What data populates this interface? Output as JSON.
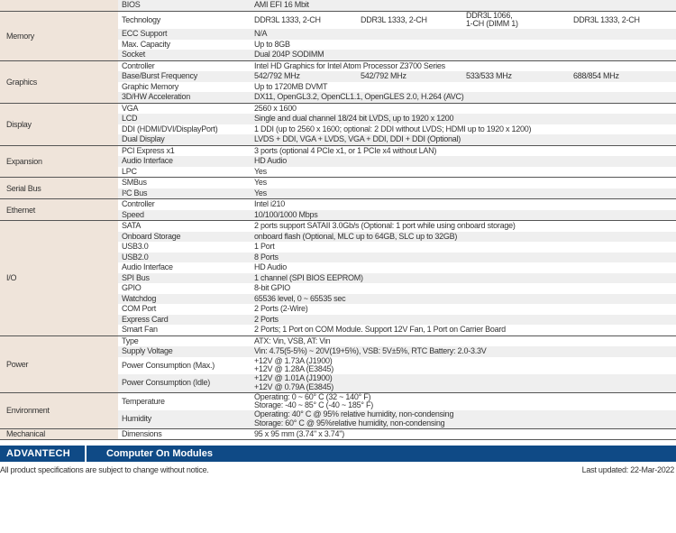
{
  "groups": [
    {
      "category": "",
      "rows": [
        {
          "label": "BIOS",
          "values": [
            "AMI EFI 16 Mbit"
          ],
          "shade": true
        }
      ]
    },
    {
      "category": "Memory",
      "rows": [
        {
          "label": "Technology",
          "values": [
            "DDR3L 1333, 2-CH",
            "DDR3L 1333, 2-CH",
            "DDR3L 1066,\n1-CH (DIMM 1)",
            "DDR3L 1333, 2-CH"
          ],
          "tall": true
        },
        {
          "label": "ECC Support",
          "values": [
            "N/A"
          ]
        },
        {
          "label": "Max. Capacity",
          "values": [
            "Up to 8GB"
          ]
        },
        {
          "label": "Socket",
          "values": [
            "Dual 204P SODIMM"
          ]
        }
      ]
    },
    {
      "category": "Graphics",
      "rows": [
        {
          "label": "Controller",
          "values": [
            "Intel HD Graphics for Intel Atom Processor Z3700 Series"
          ]
        },
        {
          "label": "Base/Burst Frequency",
          "values": [
            "542/792 MHz",
            "542/792 MHz",
            "533/533 MHz",
            "688/854 MHz"
          ]
        },
        {
          "label": "Graphic Memory",
          "values": [
            "Up to 1720MB DVMT"
          ]
        },
        {
          "label": "3D/HW Acceleration",
          "values": [
            "DX11, OpenGL3.2, OpenCL1.1, OpenGLES 2.0, H.264 (AVC)"
          ]
        }
      ]
    },
    {
      "category": "Display",
      "rows": [
        {
          "label": "VGA",
          "values": [
            "2560 x 1600"
          ]
        },
        {
          "label": "LCD",
          "values": [
            "Single and dual channel 18/24 bit LVDS, up to 1920 x 1200"
          ]
        },
        {
          "label": "DDI (HDMI/DVI/DisplayPort)",
          "values": [
            "1 DDI (up to 2560 x 1600; optional: 2 DDI without LVDS; HDMI up to 1920 x 1200)"
          ]
        },
        {
          "label": "Dual Display",
          "values": [
            "LVDS + DDI, VGA + LVDS, VGA + DDI, DDI + DDI (Optional)"
          ]
        }
      ]
    },
    {
      "category": "Expansion",
      "rows": [
        {
          "label": "PCI Express x1",
          "values": [
            "3 ports (optional 4 PCIe x1, or 1 PCIe x4 without LAN)"
          ]
        },
        {
          "label": "Audio Interface",
          "values": [
            "HD Audio"
          ]
        },
        {
          "label": "LPC",
          "values": [
            "Yes"
          ]
        }
      ]
    },
    {
      "category": "Serial Bus",
      "rows": [
        {
          "label": "SMBus",
          "values": [
            "Yes"
          ]
        },
        {
          "label": "I²C Bus",
          "values": [
            "Yes"
          ]
        }
      ]
    },
    {
      "category": "Ethernet",
      "rows": [
        {
          "label": "Controller",
          "values": [
            "Intel i210"
          ]
        },
        {
          "label": "Speed",
          "values": [
            "10/100/1000 Mbps"
          ]
        }
      ]
    },
    {
      "category": "I/O",
      "rows": [
        {
          "label": "SATA",
          "values": [
            "2 ports support SATAII 3.0Gb/s (Optional: 1 port while using onboard storage)"
          ]
        },
        {
          "label": "Onboard Storage",
          "values": [
            "onboard flash (Optional, MLC up to 64GB, SLC up to 32GB)"
          ]
        },
        {
          "label": "USB3.0",
          "values": [
            "1 Port"
          ]
        },
        {
          "label": "USB2.0",
          "values": [
            "8 Ports"
          ]
        },
        {
          "label": "Audio Interface",
          "values": [
            "HD Audio"
          ]
        },
        {
          "label": "SPI Bus",
          "values": [
            "1 channel (SPI BIOS EEPROM)"
          ]
        },
        {
          "label": "GPIO",
          "values": [
            "8-bit GPIO"
          ]
        },
        {
          "label": "Watchdog",
          "values": [
            "65536 level, 0 ~ 65535 sec"
          ]
        },
        {
          "label": "COM Port",
          "values": [
            "2 Ports (2-Wire)"
          ]
        },
        {
          "label": "Express Card",
          "values": [
            "2 Ports"
          ]
        },
        {
          "label": "Smart Fan",
          "values": [
            "2 Ports; 1 Port on COM Module. Support 12V Fan, 1 Port on Carrier Board"
          ]
        }
      ]
    },
    {
      "category": "Power",
      "rows": [
        {
          "label": "Type",
          "values": [
            "ATX: Vin, VSB, AT: Vin"
          ]
        },
        {
          "label": "Supply Voltage",
          "values": [
            "Vin: 4.75(5-5%) ~ 20V(19+5%), VSB: 5V±5%, RTC Battery: 2.0-3.3V"
          ]
        },
        {
          "label": "Power Consumption (Max.)",
          "values": [
            "+12V @ 1.73A (J1900)\n+12V @ 1.28A (E3845)"
          ],
          "tall": true
        },
        {
          "label": "Power Consumption (Idle)",
          "values": [
            "+12V @ 1.01A (J1900)\n+12V @ 0.79A (E3845)"
          ],
          "tall": true
        }
      ]
    },
    {
      "category": "Environment",
      "rows": [
        {
          "label": "Temperature",
          "values": [
            "Operating: 0 ~ 60° C (32 ~ 140° F)\nStorage: -40 ~ 85° C (-40 ~ 185° F)"
          ],
          "tall": true
        },
        {
          "label": "Humidity",
          "values": [
            "Operating: 40° C @ 95% relative humidity, non-condensing\nStorage: 60° C @ 95%relative humidity, non-condensing"
          ],
          "tall": true
        }
      ]
    },
    {
      "category": "Mechanical",
      "rows": [
        {
          "label": "Dimensions",
          "values": [
            "95 x 95 mm (3.74\" x 3.74\")"
          ]
        }
      ]
    }
  ],
  "footer": {
    "logo": "ADVANTECH",
    "title": "Computer On Modules",
    "disclaimer": "All product specifications are subject to change without notice.",
    "updated": "Last updated: 22-Mar-2022",
    "bar_color": "#0f4a86"
  }
}
